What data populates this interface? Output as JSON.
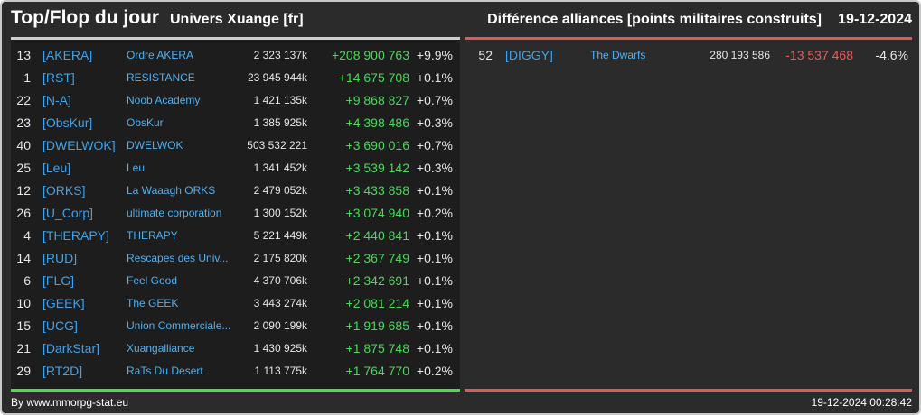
{
  "header": {
    "title": "Top/Flop du jour",
    "universe": "Univers Xuange [fr]",
    "subtitle": "Différence alliances [points militaires construits]",
    "date": "19-12-2024"
  },
  "top": [
    {
      "rank": "13",
      "tag": "[AKERA]",
      "name": "Ordre AKERA",
      "points": "2 323 137k",
      "diff": "+208 900 763",
      "pct": "+9.9%"
    },
    {
      "rank": "1",
      "tag": "[RST]",
      "name": "RESISTANCE",
      "points": "23 945 944k",
      "diff": "+14 675 708",
      "pct": "+0.1%"
    },
    {
      "rank": "22",
      "tag": "[N-A]",
      "name": "Noob Academy",
      "points": "1 421 135k",
      "diff": "+9 868 827",
      "pct": "+0.7%"
    },
    {
      "rank": "23",
      "tag": "[ObsKur]",
      "name": "ObsKur",
      "points": "1 385 925k",
      "diff": "+4 398 486",
      "pct": "+0.3%"
    },
    {
      "rank": "40",
      "tag": "[DWELWOK]",
      "name": "DWELWOK",
      "points": "503 532 221",
      "diff": "+3 690 016",
      "pct": "+0.7%"
    },
    {
      "rank": "25",
      "tag": "[Leu]",
      "name": "Leu",
      "points": "1 341 452k",
      "diff": "+3 539 142",
      "pct": "+0.3%"
    },
    {
      "rank": "12",
      "tag": "[ORKS]",
      "name": "La Waaagh ORKS",
      "points": "2 479 052k",
      "diff": "+3 433 858",
      "pct": "+0.1%"
    },
    {
      "rank": "26",
      "tag": "[U_Corp]",
      "name": "ultimate corporation",
      "points": "1 300 152k",
      "diff": "+3 074 940",
      "pct": "+0.2%"
    },
    {
      "rank": "4",
      "tag": "[THERAPY]",
      "name": "THERAPY",
      "points": "5 221 449k",
      "diff": "+2 440 841",
      "pct": "+0.1%"
    },
    {
      "rank": "14",
      "tag": "[RUD]",
      "name": "Rescapes des Univ...",
      "points": "2 175 820k",
      "diff": "+2 367 749",
      "pct": "+0.1%"
    },
    {
      "rank": "6",
      "tag": "[FLG]",
      "name": "Feel Good",
      "points": "4 370 706k",
      "diff": "+2 342 691",
      "pct": "+0.1%"
    },
    {
      "rank": "10",
      "tag": "[GEEK]",
      "name": "The GEEK",
      "points": "3 443 274k",
      "diff": "+2 081 214",
      "pct": "+0.1%"
    },
    {
      "rank": "15",
      "tag": "[UCG]",
      "name": "Union Commerciale...",
      "points": "2 090 199k",
      "diff": "+1 919 685",
      "pct": "+0.1%"
    },
    {
      "rank": "21",
      "tag": "[DarkStar]",
      "name": "Xuangalliance",
      "points": "1 430 925k",
      "diff": "+1 875 748",
      "pct": "+0.1%"
    },
    {
      "rank": "29",
      "tag": "[RT2D]",
      "name": "RaTs Du Desert",
      "points": "1 113 775k",
      "diff": "+1 764 770",
      "pct": "+0.2%"
    }
  ],
  "flop": [
    {
      "rank": "52",
      "tag": "[DIGGY]",
      "name": "The Dwarfs",
      "points": "280 193 586",
      "diff": "-13 537 468",
      "pct": "-4.6%"
    }
  ],
  "footer": {
    "source": "By www.mmorpg-stat.eu",
    "timestamp": "19-12-2024 00:28:42"
  },
  "colors": {
    "positive": "#49d85a",
    "negative": "#ee5a55",
    "link": "#3fa2ea"
  }
}
